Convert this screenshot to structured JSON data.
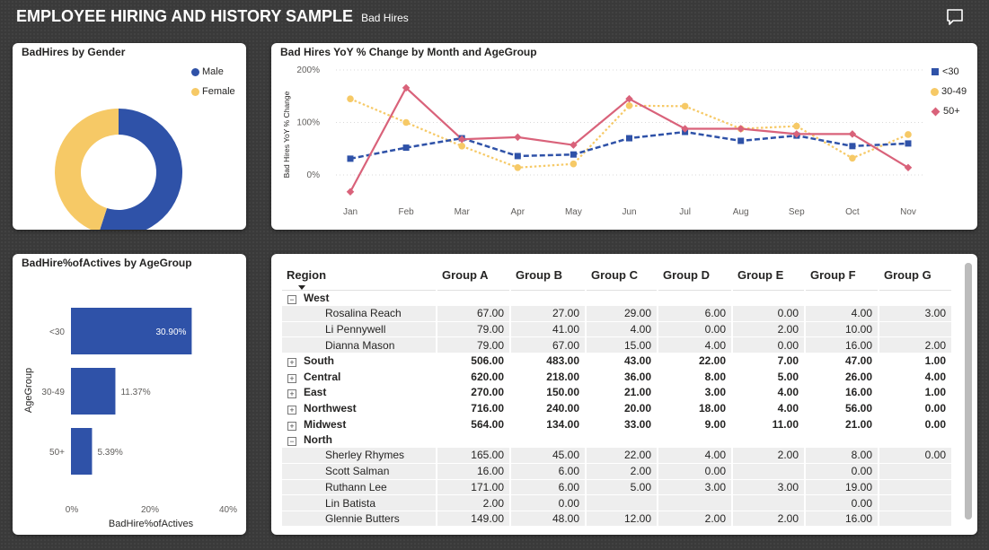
{
  "header": {
    "title": "EMPLOYEE HIRING AND HISTORY SAMPLE",
    "subtitle": "Bad Hires"
  },
  "gender_card": {
    "title": "BadHires by Gender",
    "chart_data": {
      "type": "pie",
      "subtype": "donut",
      "categories": [
        "Male",
        "Female"
      ],
      "values": [
        55,
        45
      ],
      "colors": [
        "#2f52a8",
        "#f6c966"
      ],
      "legend_position": "top-right"
    }
  },
  "yoy_card": {
    "title": "Bad Hires YoY % Change by Month and AgeGroup",
    "chart_data": {
      "type": "line",
      "ylabel": "Bad Hires YoY % Change",
      "yticks": [
        "200%",
        "100%",
        "0%"
      ],
      "ylim": [
        -35,
        200
      ],
      "categories": [
        "Jan",
        "Feb",
        "Mar",
        "Apr",
        "May",
        "Jun",
        "Jul",
        "Aug",
        "Sep",
        "Oct",
        "Nov"
      ],
      "series": [
        {
          "name": "<30",
          "color": "#2f52a8",
          "marker": "square",
          "style": "dashed",
          "values": [
            31,
            52,
            70,
            36,
            39,
            70,
            82,
            65,
            75,
            55,
            60
          ]
        },
        {
          "name": "30-49",
          "color": "#f6c966",
          "marker": "circle",
          "style": "dotted",
          "values": [
            145,
            100,
            55,
            14,
            21,
            132,
            131,
            88,
            93,
            32,
            77
          ]
        },
        {
          "name": "50+",
          "color": "#d9627a",
          "marker": "diamond",
          "style": "solid",
          "values": [
            -32,
            166,
            68,
            72,
            57,
            145,
            88,
            88,
            78,
            78,
            14
          ]
        }
      ],
      "legend_position": "right",
      "grid": true
    }
  },
  "age_card": {
    "title": "BadHire%ofActives by AgeGroup",
    "chart_data": {
      "type": "bar",
      "orientation": "horizontal",
      "categories": [
        "<30",
        "30-49",
        "50+"
      ],
      "values": [
        30.9,
        11.37,
        5.39
      ],
      "labels": [
        "30.90%",
        "11.37%",
        "5.39%"
      ],
      "xlabel": "BadHire%ofActives",
      "ylabel": "AgeGroup",
      "xticks": [
        "0%",
        "20%",
        "40%"
      ],
      "xlim": [
        0,
        40
      ],
      "color": "#2f52a8"
    }
  },
  "table": {
    "headers": [
      "Region",
      "Group A",
      "Group B",
      "Group C",
      "Group D",
      "Group E",
      "Group F",
      "Group G"
    ],
    "rows": [
      {
        "type": "region",
        "expanded": true,
        "name": "West",
        "cells": [
          "",
          "",
          "",
          "",
          "",
          "",
          ""
        ]
      },
      {
        "type": "detail",
        "name": "Rosalina Reach",
        "cells": [
          "67.00",
          "27.00",
          "29.00",
          "6.00",
          "0.00",
          "4.00",
          "3.00"
        ]
      },
      {
        "type": "detail",
        "name": "Li Pennywell",
        "cells": [
          "79.00",
          "41.00",
          "4.00",
          "0.00",
          "2.00",
          "10.00",
          ""
        ]
      },
      {
        "type": "detail",
        "name": "Dianna Mason",
        "cells": [
          "79.00",
          "67.00",
          "15.00",
          "4.00",
          "0.00",
          "16.00",
          "2.00"
        ]
      },
      {
        "type": "region",
        "expanded": false,
        "name": "South",
        "cells": [
          "506.00",
          "483.00",
          "43.00",
          "22.00",
          "7.00",
          "47.00",
          "1.00"
        ]
      },
      {
        "type": "region",
        "expanded": false,
        "name": "Central",
        "cells": [
          "620.00",
          "218.00",
          "36.00",
          "8.00",
          "5.00",
          "26.00",
          "4.00"
        ]
      },
      {
        "type": "region",
        "expanded": false,
        "name": "East",
        "cells": [
          "270.00",
          "150.00",
          "21.00",
          "3.00",
          "4.00",
          "16.00",
          "1.00"
        ]
      },
      {
        "type": "region",
        "expanded": false,
        "name": "Northwest",
        "cells": [
          "716.00",
          "240.00",
          "20.00",
          "18.00",
          "4.00",
          "56.00",
          "0.00"
        ]
      },
      {
        "type": "region",
        "expanded": false,
        "name": "Midwest",
        "cells": [
          "564.00",
          "134.00",
          "33.00",
          "9.00",
          "11.00",
          "21.00",
          "0.00"
        ]
      },
      {
        "type": "region",
        "expanded": true,
        "name": "North",
        "cells": [
          "",
          "",
          "",
          "",
          "",
          "",
          ""
        ]
      },
      {
        "type": "detail",
        "name": "Sherley Rhymes",
        "cells": [
          "165.00",
          "45.00",
          "22.00",
          "4.00",
          "2.00",
          "8.00",
          "0.00"
        ]
      },
      {
        "type": "detail",
        "name": "Scott Salman",
        "cells": [
          "16.00",
          "6.00",
          "2.00",
          "0.00",
          "",
          "0.00",
          ""
        ]
      },
      {
        "type": "detail",
        "name": "Ruthann Lee",
        "cells": [
          "171.00",
          "6.00",
          "5.00",
          "3.00",
          "3.00",
          "19.00",
          ""
        ]
      },
      {
        "type": "detail",
        "name": "Lin Batista",
        "cells": [
          "2.00",
          "0.00",
          "",
          "",
          "",
          "0.00",
          ""
        ]
      },
      {
        "type": "detail",
        "name": "Glennie Butters",
        "cells": [
          "149.00",
          "48.00",
          "12.00",
          "2.00",
          "2.00",
          "16.00",
          ""
        ]
      }
    ]
  }
}
